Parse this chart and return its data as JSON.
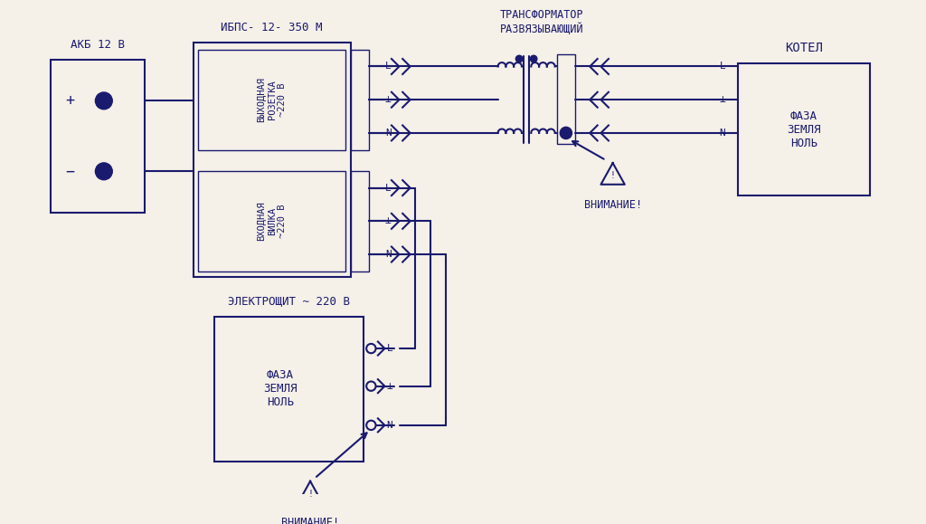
{
  "bg_color": "#f5f0e8",
  "line_color": "#1a1a6e",
  "text_color": "#1a1a6e",
  "figsize": [
    10.24,
    5.79
  ],
  "dpi": 100,
  "labels": {
    "akb": "АКБ 12 В",
    "ibps": "ИБПС- 12- 350 М",
    "ibps_top": "ВЫХОДНАЯ\nРОЗЕТКА\n~220 В",
    "ibps_bot": "ВХОДНАЯ\nВИЛКА\n~220 В",
    "transformer": "ТРАНСФОРМАТОР\nРАЗВЯЗЫВАЮЩИЙ",
    "kotel": "КОТЕЛ",
    "kotel_inner": "ФАЗА\nЗЕМЛЯ\nНОЛЬ",
    "electroshit": "ЭЛЕКТРОЩИТ ~ 220 В",
    "shit_inner": "ФАЗА\nЗЕМЛЯ\nНОЛЬ",
    "vnimanie": "ВНИМАНИЕ!",
    "L": "L",
    "N": "N",
    "earth": "⊥",
    "plus": "+",
    "minus": "−"
  }
}
